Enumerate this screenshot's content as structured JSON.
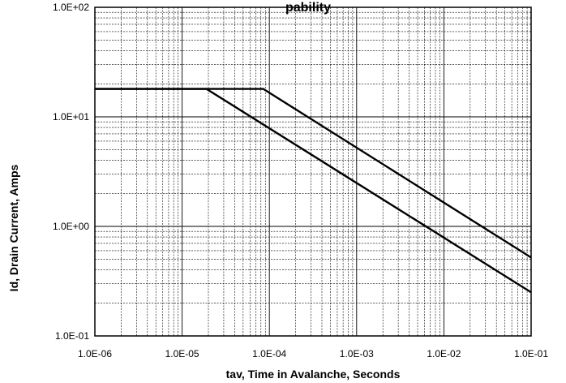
{
  "chart_data": {
    "type": "line",
    "title_fragment": "pability",
    "xlabel": "tav, Time in Avalanche, Seconds",
    "ylabel": "Id, Drain Current, Amps",
    "x_scale": "log",
    "y_scale": "log",
    "xlim": [
      1e-06,
      0.1
    ],
    "ylim": [
      0.1,
      100
    ],
    "grid": true,
    "x_ticks": [
      {
        "value": 1e-06,
        "label": "1.0E-06"
      },
      {
        "value": 1e-05,
        "label": "1.0E-05"
      },
      {
        "value": 0.0001,
        "label": "1.0E-04"
      },
      {
        "value": 0.001,
        "label": "1.0E-03"
      },
      {
        "value": 0.01,
        "label": "1.0E-02"
      },
      {
        "value": 0.1,
        "label": "1.0E-01"
      }
    ],
    "y_ticks": [
      {
        "value": 0.1,
        "label": "1.0E-01"
      },
      {
        "value": 1,
        "label": "1.0E+00"
      },
      {
        "value": 10,
        "label": "1.0E+01"
      },
      {
        "value": 100,
        "label": "1.0E+02"
      }
    ],
    "series": [
      {
        "x": [
          1e-06,
          8.5e-05,
          0.1
        ],
        "y": [
          18,
          18,
          0.52
        ]
      },
      {
        "x": [
          1e-06,
          1.9e-05,
          0.1
        ],
        "y": [
          18,
          18,
          0.25
        ]
      }
    ],
    "line_color": "#000000"
  }
}
